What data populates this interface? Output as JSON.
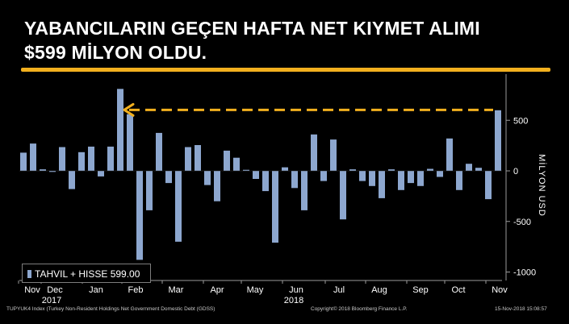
{
  "header": {
    "title_line1": "YABANCILARIN GEÇEN HAFTA NET KIYMET ALIMI",
    "title_line2": "$599 MİLYON OLDU."
  },
  "footer": {
    "left": "TUPYUK4 Index (Turkey Non-Resident Holdings Net Government Domestic Debt (GDSS)",
    "center": "Copyright© 2018 Bloomberg Finance L.P.",
    "right": "15-Nov-2018 15:08:57"
  },
  "colors": {
    "bar": "#8da7cf",
    "accent": "#f2b01e",
    "axis": "#9a9a9a"
  },
  "legend": {
    "label": "TAHVIL + HISSE 599.00"
  },
  "chart_data": {
    "type": "bar",
    "ylabel": "MİLYON USD",
    "ylim": [
      -1050,
      980
    ],
    "yticks": [
      500,
      0,
      -500,
      -1000
    ],
    "ytick_labels": [
      "500",
      "0",
      "-500",
      "-1000"
    ],
    "x_month_labels": [
      "Nov",
      "Dec",
      "Jan",
      "Feb",
      "Mar",
      "Apr",
      "May",
      "Jun",
      "Jul",
      "Aug",
      "Sep",
      "Oct",
      "Nov"
    ],
    "x_year_labels": [
      "2017",
      "2018"
    ],
    "annotation": "Arrow from latest weekly value (599) back to the mid-February 2018 level",
    "series": [
      {
        "name": "TAHVIL + HISSE",
        "values": [
          180,
          270,
          15,
          -10,
          235,
          -180,
          185,
          240,
          -55,
          240,
          810,
          560,
          -880,
          -390,
          375,
          -120,
          -700,
          235,
          255,
          -140,
          -300,
          200,
          130,
          10,
          -80,
          -200,
          -710,
          35,
          -170,
          -390,
          360,
          -100,
          310,
          -480,
          15,
          -100,
          -150,
          -270,
          15,
          -190,
          -120,
          -150,
          20,
          -60,
          320,
          -190,
          70,
          30,
          -280,
          599
        ]
      }
    ]
  }
}
